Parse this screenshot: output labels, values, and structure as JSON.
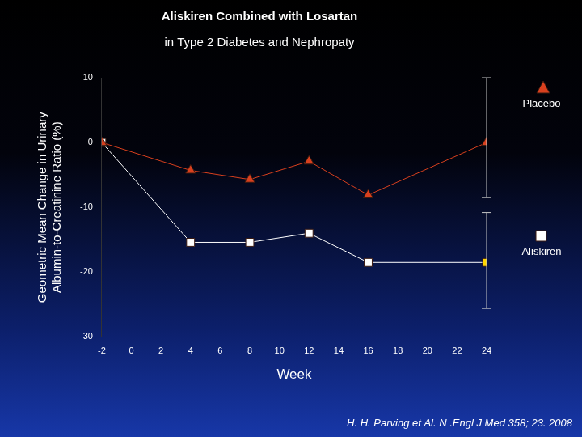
{
  "chart_data": {
    "type": "line",
    "title": "Aliskiren Combined with Losartan",
    "subtitle": "in Type 2 Diabetes and Nephropaty",
    "x_label": "Week",
    "y_label": [
      "Geometric Mean Change in Urinary",
      "Albumin-to-Creatinine Ratio (%)"
    ],
    "annotations": [
      "H. H. Parving et Al. N .Engl J Med 358; 23. 2008"
    ],
    "x": [
      -2,
      4,
      8,
      12,
      16,
      24
    ],
    "series": [
      {
        "name": "Placebo",
        "color": "#d8401e",
        "marker": "triangle",
        "values": [
          0,
          -4.3,
          -5.7,
          -2.9,
          -8.1,
          0
        ],
        "ci_low": [
          null,
          null,
          null,
          null,
          null,
          -8.5
        ],
        "ci_high": [
          null,
          null,
          null,
          null,
          null,
          10
        ]
      },
      {
        "name": "Aliskiren",
        "color": "#ffffff",
        "colors": [
          "#ffffff",
          "#ffffff",
          "#ffffff",
          "#ffffff",
          "#ffffff",
          "#ffd700"
        ],
        "marker": "square",
        "values": [
          0,
          -15.4,
          -15.4,
          -14,
          -18.5,
          -18.5
        ],
        "ci_low": [
          null,
          null,
          null,
          null,
          null,
          -25.6
        ],
        "ci_high": [
          null,
          null,
          null,
          null,
          null,
          -10.8
        ]
      }
    ],
    "xlim": [
      -2,
      24
    ],
    "xticks": [
      -2,
      0,
      2,
      4,
      6,
      8,
      10,
      12,
      14,
      16,
      18,
      20,
      22,
      24
    ],
    "ylim": [
      -30,
      10
    ],
    "yticks": [
      -30,
      -20,
      -10,
      0,
      10
    ],
    "grid": false,
    "legend": "right"
  }
}
